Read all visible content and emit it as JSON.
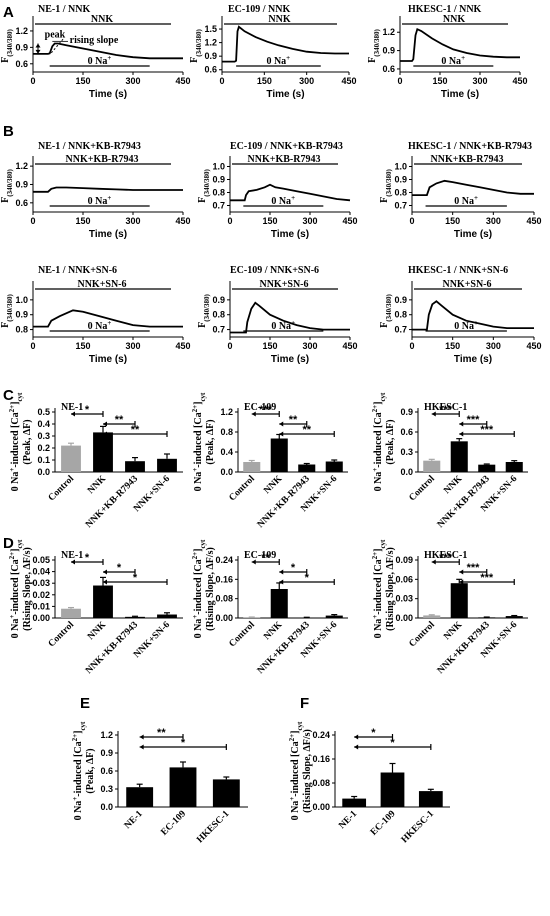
{
  "figure": {
    "panel_letters": [
      "A",
      "B",
      "C",
      "D",
      "E",
      "F"
    ],
    "colors": {
      "control": "#a6a6a6",
      "bar": "#000000",
      "trace": "#000000"
    }
  },
  "chart_data": [
    {
      "id": "A1",
      "panel": "A",
      "type": "line",
      "title": "NE-1 / NNK",
      "treatment": "NNK",
      "xlabel": "Time (s)",
      "ylabel": "F(340/380)",
      "xlim": [
        0,
        450
      ],
      "ylim": [
        0.45,
        1.4
      ],
      "xticks": [
        0,
        150,
        300,
        450
      ],
      "yticks": [
        0.6,
        0.9,
        1.2
      ],
      "treatment_bar": [
        0,
        450
      ],
      "zero_na_bar": [
        50,
        350
      ],
      "zero_na_label": "0 Na+",
      "annotations": [
        "peak",
        "rising slope"
      ],
      "trace": [
        [
          0,
          0.78
        ],
        [
          45,
          0.78
        ],
        [
          50,
          0.79
        ],
        [
          58,
          0.92
        ],
        [
          65,
          0.97
        ],
        [
          75,
          0.97
        ],
        [
          100,
          0.94
        ],
        [
          150,
          0.88
        ],
        [
          200,
          0.82
        ],
        [
          250,
          0.76
        ],
        [
          300,
          0.72
        ],
        [
          350,
          0.7
        ],
        [
          400,
          0.7
        ],
        [
          450,
          0.7
        ]
      ]
    },
    {
      "id": "A2",
      "panel": "A",
      "type": "line",
      "title": "EC-109 / NNK",
      "treatment": "NNK",
      "xlabel": "Time (s)",
      "ylabel": "F(340/380)",
      "xlim": [
        0,
        450
      ],
      "ylim": [
        0.55,
        1.7
      ],
      "xticks": [
        0,
        150,
        300,
        450
      ],
      "yticks": [
        0.6,
        0.9,
        1.2,
        1.5
      ],
      "treatment_bar": [
        0,
        450
      ],
      "zero_na_bar": [
        50,
        350
      ],
      "zero_na_label": "0 Na+",
      "trace": [
        [
          0,
          0.78
        ],
        [
          45,
          0.78
        ],
        [
          50,
          0.8
        ],
        [
          55,
          1.45
        ],
        [
          60,
          1.55
        ],
        [
          80,
          1.45
        ],
        [
          120,
          1.32
        ],
        [
          160,
          1.22
        ],
        [
          200,
          1.14
        ],
        [
          250,
          1.06
        ],
        [
          300,
          1.0
        ],
        [
          350,
          0.97
        ],
        [
          400,
          0.96
        ],
        [
          450,
          0.96
        ]
      ]
    },
    {
      "id": "A3",
      "panel": "A",
      "type": "line",
      "title": "HKESC-1 / NNK",
      "treatment": "NNK",
      "xlabel": "Time (s)",
      "ylabel": "F(340/380)",
      "xlim": [
        0,
        450
      ],
      "ylim": [
        0.55,
        1.4
      ],
      "xticks": [
        0,
        150,
        300,
        450
      ],
      "yticks": [
        0.6,
        0.9,
        1.2
      ],
      "treatment_bar": [
        0,
        450
      ],
      "zero_na_bar": [
        50,
        350
      ],
      "zero_na_label": "0 Na+",
      "trace": [
        [
          0,
          0.73
        ],
        [
          45,
          0.73
        ],
        [
          50,
          0.76
        ],
        [
          58,
          1.15
        ],
        [
          65,
          1.25
        ],
        [
          80,
          1.22
        ],
        [
          120,
          1.1
        ],
        [
          160,
          1.0
        ],
        [
          200,
          0.92
        ],
        [
          250,
          0.86
        ],
        [
          300,
          0.82
        ],
        [
          350,
          0.8
        ],
        [
          400,
          0.79
        ],
        [
          450,
          0.79
        ]
      ]
    },
    {
      "id": "B1",
      "panel": "B",
      "type": "line",
      "title": "NE-1 / NNK+KB-R7943",
      "treatment": "NNK+KB-R7943",
      "xlabel": "Time (s)",
      "ylabel": "F(340/380)",
      "xlim": [
        0,
        450
      ],
      "ylim": [
        0.45,
        1.3
      ],
      "xticks": [
        0,
        150,
        300,
        450
      ],
      "yticks": [
        0.6,
        0.9,
        1.2
      ],
      "treatment_bar": [
        0,
        450
      ],
      "zero_na_bar": [
        50,
        350
      ],
      "zero_na_label": "0 Na+",
      "trace": [
        [
          0,
          0.78
        ],
        [
          45,
          0.78
        ],
        [
          55,
          0.83
        ],
        [
          70,
          0.85
        ],
        [
          100,
          0.85
        ],
        [
          150,
          0.84
        ],
        [
          200,
          0.83
        ],
        [
          250,
          0.82
        ],
        [
          300,
          0.81
        ],
        [
          350,
          0.81
        ],
        [
          400,
          0.81
        ],
        [
          450,
          0.81
        ]
      ]
    },
    {
      "id": "B2",
      "panel": "B",
      "type": "line",
      "title": "EC-109 / NNK+KB-R7943",
      "treatment": "NNK+KB-R7943",
      "xlabel": "Time (s)",
      "ylabel": "F(340/380)",
      "xlim": [
        0,
        450
      ],
      "ylim": [
        0.65,
        1.05
      ],
      "xticks": [
        0,
        150,
        300,
        450
      ],
      "yticks": [
        0.7,
        0.8,
        0.9,
        1.0
      ],
      "treatment_bar": [
        0,
        450
      ],
      "zero_na_bar": [
        50,
        350
      ],
      "zero_na_label": "0 Na+",
      "trace": [
        [
          0,
          0.74
        ],
        [
          55,
          0.74
        ],
        [
          60,
          0.78
        ],
        [
          70,
          0.81
        ],
        [
          100,
          0.82
        ],
        [
          130,
          0.84
        ],
        [
          150,
          0.86
        ],
        [
          170,
          0.84
        ],
        [
          200,
          0.83
        ],
        [
          250,
          0.81
        ],
        [
          300,
          0.79
        ],
        [
          350,
          0.77
        ],
        [
          400,
          0.75
        ],
        [
          450,
          0.74
        ]
      ]
    },
    {
      "id": "B3",
      "panel": "B",
      "type": "line",
      "title": "HKESC-1 / NNK+KB-R7943",
      "treatment": "NNK+KB-R7943",
      "xlabel": "Time (s)",
      "ylabel": "F(340/380)",
      "xlim": [
        0,
        450
      ],
      "ylim": [
        0.65,
        1.05
      ],
      "xticks": [
        0,
        150,
        300,
        450
      ],
      "yticks": [
        0.7,
        0.8,
        0.9,
        1.0
      ],
      "treatment_bar": [
        0,
        450
      ],
      "zero_na_bar": [
        50,
        350
      ],
      "zero_na_label": "0 Na+",
      "trace": [
        [
          0,
          0.78
        ],
        [
          55,
          0.78
        ],
        [
          65,
          0.84
        ],
        [
          90,
          0.87
        ],
        [
          120,
          0.89
        ],
        [
          150,
          0.88
        ],
        [
          200,
          0.86
        ],
        [
          250,
          0.84
        ],
        [
          300,
          0.82
        ],
        [
          350,
          0.8
        ],
        [
          400,
          0.79
        ],
        [
          450,
          0.79
        ]
      ]
    },
    {
      "id": "B4",
      "panel": "B",
      "type": "line",
      "title": "NE-1 / NNK+SN-6",
      "treatment": "NNK+SN-6",
      "xlabel": "Time (s)",
      "ylabel": "F(340/380)",
      "xlim": [
        0,
        450
      ],
      "ylim": [
        0.75,
        1.1
      ],
      "xticks": [
        0,
        150,
        300,
        450
      ],
      "yticks": [
        0.8,
        0.9,
        1.0
      ],
      "treatment_bar": [
        0,
        450
      ],
      "zero_na_bar": [
        50,
        350
      ],
      "zero_na_label": "0 Na+",
      "trace": [
        [
          0,
          0.82
        ],
        [
          45,
          0.82
        ],
        [
          55,
          0.86
        ],
        [
          80,
          0.89
        ],
        [
          120,
          0.93
        ],
        [
          150,
          0.92
        ],
        [
          200,
          0.89
        ],
        [
          250,
          0.86
        ],
        [
          300,
          0.83
        ],
        [
          350,
          0.82
        ],
        [
          400,
          0.82
        ],
        [
          450,
          0.82
        ]
      ]
    },
    {
      "id": "B5",
      "panel": "B",
      "type": "line",
      "title": "EC-109 / NNK+SN-6",
      "treatment": "NNK+SN-6",
      "xlabel": "Time (s)",
      "ylabel": "F(340/380)",
      "xlim": [
        0,
        450
      ],
      "ylim": [
        0.65,
        1.0
      ],
      "xticks": [
        0,
        150,
        300,
        450
      ],
      "yticks": [
        0.7,
        0.8,
        0.9
      ],
      "treatment_bar": [
        0,
        450
      ],
      "zero_na_bar": [
        50,
        350
      ],
      "zero_na_label": "0 Na+",
      "trace": [
        [
          0,
          0.68
        ],
        [
          60,
          0.68
        ],
        [
          65,
          0.75
        ],
        [
          80,
          0.84
        ],
        [
          95,
          0.88
        ],
        [
          110,
          0.86
        ],
        [
          150,
          0.8
        ],
        [
          200,
          0.76
        ],
        [
          250,
          0.73
        ],
        [
          300,
          0.71
        ],
        [
          350,
          0.7
        ],
        [
          400,
          0.7
        ],
        [
          450,
          0.7
        ]
      ]
    },
    {
      "id": "B6",
      "panel": "B",
      "type": "line",
      "title": "HKESC-1 / NNK+SN-6",
      "treatment": "NNK+SN-6",
      "xlabel": "Time (s)",
      "ylabel": "F(340/380)",
      "xlim": [
        0,
        450
      ],
      "ylim": [
        0.65,
        1.0
      ],
      "xticks": [
        0,
        150,
        300,
        450
      ],
      "yticks": [
        0.7,
        0.8,
        0.9
      ],
      "treatment_bar": [
        0,
        450
      ],
      "zero_na_bar": [
        50,
        350
      ],
      "zero_na_label": "0 Na+",
      "trace": [
        [
          0,
          0.7
        ],
        [
          55,
          0.7
        ],
        [
          62,
          0.8
        ],
        [
          75,
          0.87
        ],
        [
          90,
          0.89
        ],
        [
          110,
          0.86
        ],
        [
          150,
          0.8
        ],
        [
          200,
          0.76
        ],
        [
          250,
          0.74
        ],
        [
          300,
          0.72
        ],
        [
          350,
          0.71
        ],
        [
          400,
          0.71
        ],
        [
          450,
          0.71
        ]
      ]
    },
    {
      "id": "C1",
      "panel": "C",
      "type": "bar",
      "title": "NE-1",
      "ylabel": "0 Na+-induced [Ca2+]cyt (Peak, ΔF)",
      "categories": [
        "Control",
        "NNK",
        "NNK+KB-R7943",
        "NNK+SN-6"
      ],
      "values": [
        0.22,
        0.33,
        0.09,
        0.11
      ],
      "errors": [
        0.02,
        0.05,
        0.03,
        0.04
      ],
      "ylim": [
        0,
        0.5
      ],
      "yticks": [
        0.0,
        0.1,
        0.2,
        0.3,
        0.4,
        0.5
      ],
      "brackets": [
        {
          "from": 0,
          "to": 1,
          "label": "*"
        },
        {
          "from": 1,
          "to": 2,
          "label": "**"
        },
        {
          "from": 1,
          "to": 3,
          "label": "**"
        }
      ]
    },
    {
      "id": "C2",
      "panel": "C",
      "type": "bar",
      "title": "EC-109",
      "ylabel": "0 Na+-induced [Ca2+]cyt (Peak, ΔF)",
      "categories": [
        "Control",
        "NNK",
        "NNK+KB-R7943",
        "NNK+SN-6"
      ],
      "values": [
        0.2,
        0.67,
        0.15,
        0.21
      ],
      "errors": [
        0.03,
        0.08,
        0.02,
        0.03
      ],
      "ylim": [
        0,
        1.2
      ],
      "yticks": [
        0.0,
        0.4,
        0.8,
        1.2
      ],
      "brackets": [
        {
          "from": 0,
          "to": 1,
          "label": "***"
        },
        {
          "from": 1,
          "to": 2,
          "label": "**"
        },
        {
          "from": 1,
          "to": 3,
          "label": "**"
        }
      ]
    },
    {
      "id": "C3",
      "panel": "C",
      "type": "bar",
      "title": "HKESC-1",
      "ylabel": "0 Na+-induced [Ca2+]cyt (Peak, ΔF)",
      "categories": [
        "Control",
        "NNK",
        "NNK+KB-R7943",
        "NNK+SN-6"
      ],
      "values": [
        0.17,
        0.46,
        0.11,
        0.15
      ],
      "errors": [
        0.02,
        0.04,
        0.01,
        0.02
      ],
      "ylim": [
        0,
        0.9
      ],
      "yticks": [
        0.0,
        0.3,
        0.6,
        0.9
      ],
      "brackets": [
        {
          "from": 0,
          "to": 1,
          "label": "***"
        },
        {
          "from": 1,
          "to": 2,
          "label": "***"
        },
        {
          "from": 1,
          "to": 3,
          "label": "***"
        }
      ]
    },
    {
      "id": "D1",
      "panel": "D",
      "type": "bar",
      "title": "NE-1",
      "ylabel": "0 Na+-induced [Ca2+]cyt (Rising Slope, ΔF/s)",
      "categories": [
        "Control",
        "NNK",
        "NNK+KB-R7943",
        "NNK+SN-6"
      ],
      "values": [
        0.008,
        0.028,
        0.001,
        0.003
      ],
      "errors": [
        0.001,
        0.007,
        0.0005,
        0.0015
      ],
      "ylim": [
        0,
        0.05
      ],
      "yticks": [
        0.0,
        0.01,
        0.02,
        0.03,
        0.04,
        0.05
      ],
      "brackets": [
        {
          "from": 0,
          "to": 1,
          "label": "*"
        },
        {
          "from": 1,
          "to": 2,
          "label": "*"
        },
        {
          "from": 1,
          "to": 3,
          "label": "*"
        }
      ]
    },
    {
      "id": "D2",
      "panel": "D",
      "type": "bar",
      "title": "EC-109",
      "ylabel": "0 Na+-induced [Ca2+]cyt (Rising Slope, ΔF/s)",
      "categories": [
        "Control",
        "NNK",
        "NNK+KB-R7943",
        "NNK+SN-6"
      ],
      "values": [
        0.003,
        0.12,
        0.002,
        0.01
      ],
      "errors": [
        0.001,
        0.025,
        0.001,
        0.004
      ],
      "ylim": [
        0,
        0.24
      ],
      "yticks": [
        0.0,
        0.08,
        0.16,
        0.24
      ],
      "brackets": [
        {
          "from": 0,
          "to": 1,
          "label": "**"
        },
        {
          "from": 1,
          "to": 2,
          "label": "*"
        },
        {
          "from": 1,
          "to": 3,
          "label": "*"
        }
      ]
    },
    {
      "id": "D3",
      "panel": "D",
      "type": "bar",
      "title": "HKESC-1",
      "ylabel": "0 Na+-induced [Ca2+]cyt (Rising Slope, ΔF/s)",
      "categories": [
        "Control",
        "NNK",
        "NNK+KB-R7943",
        "NNK+SN-6"
      ],
      "values": [
        0.004,
        0.054,
        0.001,
        0.003
      ],
      "errors": [
        0.001,
        0.006,
        0.0005,
        0.0008
      ],
      "ylim": [
        0,
        0.09
      ],
      "yticks": [
        0.0,
        0.03,
        0.06,
        0.09
      ],
      "brackets": [
        {
          "from": 0,
          "to": 1,
          "label": "***"
        },
        {
          "from": 1,
          "to": 2,
          "label": "***"
        },
        {
          "from": 1,
          "to": 3,
          "label": "***"
        }
      ]
    },
    {
      "id": "E",
      "panel": "E",
      "type": "bar",
      "title": "",
      "ylabel": "0 Na+-induced [Ca2+]cyt (Peak, ΔF)",
      "categories": [
        "NE-1",
        "EC-109",
        "HKESC-1"
      ],
      "values": [
        0.33,
        0.66,
        0.46
      ],
      "errors": [
        0.05,
        0.09,
        0.04
      ],
      "ylim": [
        0,
        1.2
      ],
      "yticks": [
        0.0,
        0.3,
        0.6,
        0.9,
        1.2
      ],
      "brackets": [
        {
          "from": 0,
          "to": 1,
          "label": "**"
        },
        {
          "from": 0,
          "to": 2,
          "label": "*"
        }
      ]
    },
    {
      "id": "F",
      "panel": "F",
      "type": "bar",
      "title": "",
      "ylabel": "0 Na+-induced [Ca2+]cyt (Rising Slope, ΔF/s)",
      "categories": [
        "NE-1",
        "EC-109",
        "HKESC-1"
      ],
      "values": [
        0.028,
        0.115,
        0.053
      ],
      "errors": [
        0.007,
        0.03,
        0.006
      ],
      "ylim": [
        0,
        0.24
      ],
      "yticks": [
        0.0,
        0.08,
        0.16,
        0.24
      ],
      "brackets": [
        {
          "from": 0,
          "to": 1,
          "label": "*"
        },
        {
          "from": 0,
          "to": 2,
          "label": "*"
        }
      ]
    }
  ]
}
